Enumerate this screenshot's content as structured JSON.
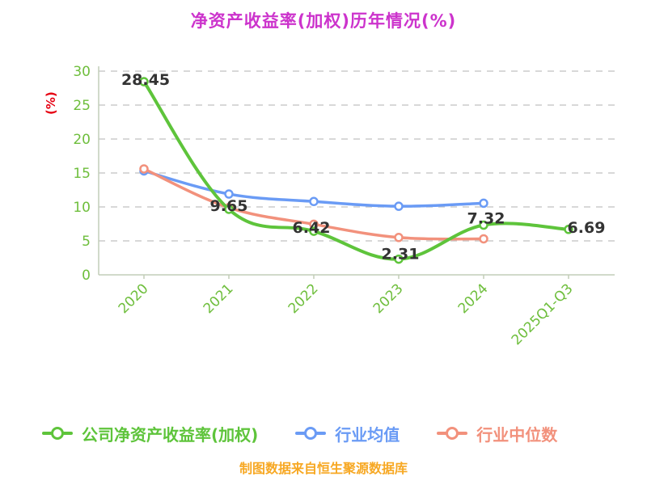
{
  "page": {
    "title": "净资产收益率(加权)历年情况(%)",
    "footer": "制图数据来自恒生聚源数据库"
  },
  "colors": {
    "title": "#CC33CC",
    "ylabel": "#E60012",
    "tick_label": "#6EBE3C",
    "grid_line": "#CBCBCB",
    "axis_line": "#C2CDB8",
    "data_label": "#333333",
    "footer": "#F7A823",
    "series_company": "#5EC43B",
    "series_avg": "#6A9BF5",
    "series_median": "#F2917C"
  },
  "chart_data": {
    "type": "line",
    "title": "净资产收益率(加权)历年情况(%)",
    "ylabel": "(%)",
    "categories": [
      "2020",
      "2021",
      "2022",
      "2023",
      "2024",
      "2025Q1-Q3"
    ],
    "series": [
      {
        "name": "公司净资产收益率(加权)",
        "key": "series_company",
        "values": [
          28.45,
          9.65,
          6.42,
          2.31,
          7.32,
          6.69
        ],
        "point_labels": [
          "28.45",
          "9.65",
          "6.42",
          "2.31",
          "7.32",
          "6.69"
        ]
      },
      {
        "name": "行业均值",
        "key": "series_avg",
        "values": [
          15.3,
          11.9,
          10.8,
          10.1,
          10.55,
          null
        ],
        "point_labels": []
      },
      {
        "name": "行业中位数",
        "key": "series_median",
        "values": [
          15.6,
          9.9,
          7.45,
          5.5,
          5.3,
          null
        ],
        "point_labels": []
      }
    ],
    "ylim": [
      0,
      30
    ],
    "yticks": [
      0,
      5,
      10,
      15,
      20,
      25,
      30
    ],
    "grid": "horizontal-dashed",
    "legend_position": "bottom"
  }
}
